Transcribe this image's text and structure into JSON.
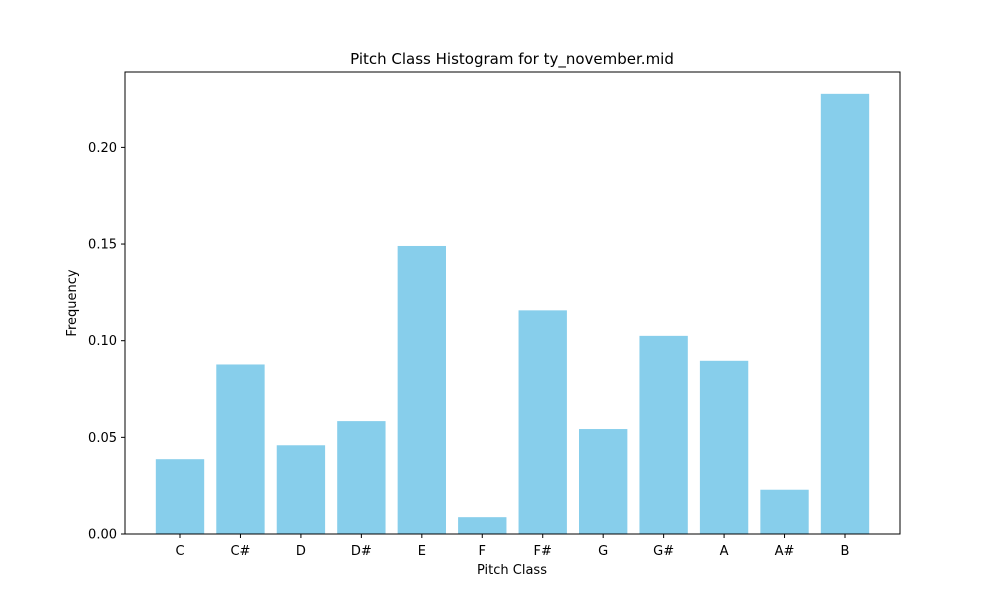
{
  "chart_data": {
    "type": "bar",
    "title": "Pitch Class Histogram for ty_november.mid",
    "xlabel": "Pitch Class",
    "ylabel": "Frequency",
    "categories": [
      "C",
      "C#",
      "D",
      "D#",
      "E",
      "F",
      "F#",
      "G",
      "G#",
      "A",
      "A#",
      "B"
    ],
    "values": [
      0.0387,
      0.0877,
      0.0459,
      0.0584,
      0.149,
      0.0087,
      0.1157,
      0.0543,
      0.1025,
      0.0896,
      0.0229,
      0.2277
    ],
    "ylim": [
      0,
      0.239
    ],
    "yticks": [
      0.0,
      0.05,
      0.1,
      0.15,
      0.2
    ],
    "ytick_labels": [
      "0.00",
      "0.05",
      "0.10",
      "0.15",
      "0.20"
    ],
    "bar_color": "#87ceeb",
    "grid": false,
    "legend": false
  }
}
